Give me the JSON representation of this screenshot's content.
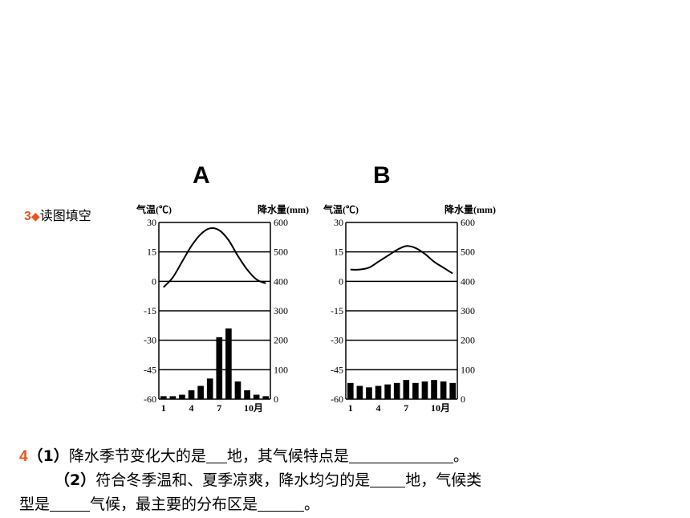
{
  "labels": {
    "chart_a": "A",
    "chart_b": "B"
  },
  "q3": {
    "number": "3",
    "marker": "◆",
    "text": "读图填空"
  },
  "q4": {
    "number": "4",
    "line1": {
      "part": "（1）",
      "text_a": "降水季节变化大的是",
      "text_b": "地，其气候特点是",
      "text_c": "。"
    },
    "line2": {
      "part": "（2）",
      "text_a": "符合冬季温和、夏季凉爽，降水均匀的是",
      "text_b": "地，气候类"
    },
    "line3": {
      "text_a": "型是",
      "text_b": "气候，最主要的分布区是",
      "text_c": "。"
    }
  },
  "colors": {
    "accent": "#e8541c",
    "ink": "#000000"
  },
  "chart_data": [
    {
      "type": "bar+line",
      "name": "A",
      "left_axis_label": "气温(℃)",
      "right_axis_label": "降水量(mm)",
      "left_ticks": [
        30,
        15,
        0,
        -15,
        -30,
        -45,
        -60
      ],
      "right_ticks": [
        600,
        500,
        400,
        300,
        200,
        100,
        0
      ],
      "x_ticks": [
        "1",
        "4",
        "7",
        "10月"
      ],
      "temperature": [
        -3,
        2,
        10,
        18,
        24,
        27,
        26,
        21,
        13,
        6,
        1,
        -1
      ],
      "precipitation": [
        10,
        10,
        15,
        30,
        45,
        70,
        210,
        240,
        60,
        30,
        15,
        10
      ],
      "temp_range": [
        -60,
        30
      ],
      "precip_range": [
        0,
        600
      ]
    },
    {
      "type": "bar+line",
      "name": "B",
      "left_axis_label": "气温(℃)",
      "right_axis_label": "降水量(mm)",
      "left_ticks": [
        30,
        15,
        0,
        -15,
        -30,
        -45,
        -60
      ],
      "right_ticks": [
        600,
        500,
        400,
        300,
        200,
        100,
        0
      ],
      "x_ticks": [
        "1",
        "4",
        "7",
        "10月"
      ],
      "temperature": [
        6,
        6,
        7,
        10,
        13,
        16,
        18,
        17,
        14,
        10,
        7,
        4
      ],
      "precipitation": [
        55,
        45,
        40,
        45,
        50,
        55,
        65,
        55,
        60,
        65,
        60,
        55
      ],
      "temp_range": [
        -60,
        30
      ],
      "precip_range": [
        0,
        600
      ]
    }
  ]
}
